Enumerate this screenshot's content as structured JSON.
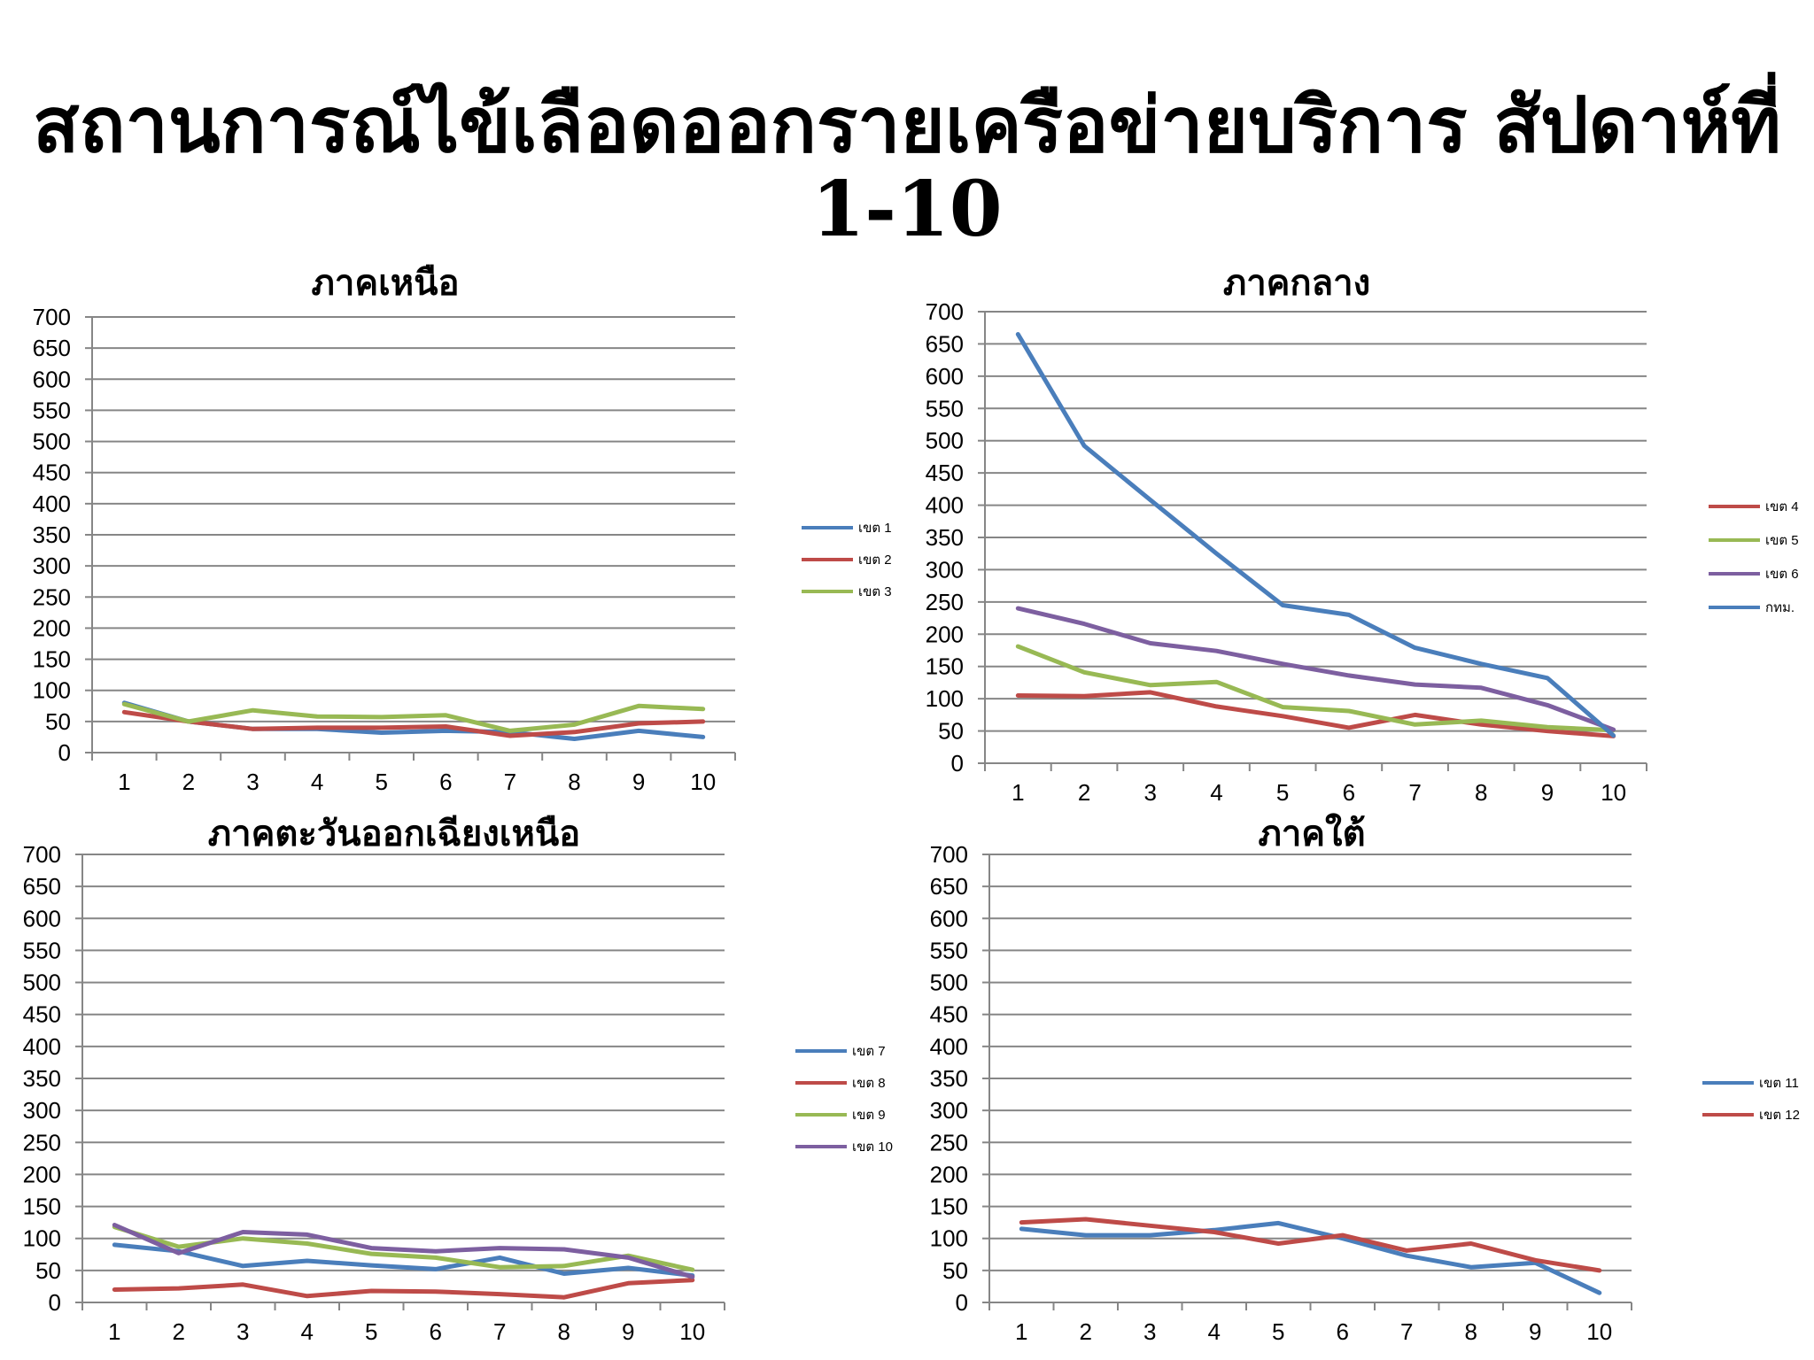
{
  "title": "สถานการณ์ไข้เลือดออกรายเครือข่ายบริการ สัปดาห์ที่ 1-10",
  "colors": {
    "blue": "#4a7ebb",
    "red": "#be4b48",
    "green": "#98b954",
    "purple": "#7d5fa0",
    "grid": "#868686"
  },
  "chart_data": [
    {
      "id": "north",
      "type": "line",
      "title": "ภาคเหนือ",
      "x": [
        1,
        2,
        3,
        4,
        5,
        6,
        7,
        8,
        9,
        10
      ],
      "ylim": [
        0,
        700
      ],
      "yticks": [
        0,
        50,
        100,
        150,
        200,
        250,
        300,
        350,
        400,
        450,
        500,
        550,
        600,
        650,
        700
      ],
      "grid": true,
      "legend": "right",
      "series": [
        {
          "name": "เขต 1",
          "color": "#4a7ebb",
          "values": [
            80,
            50,
            38,
            38,
            32,
            35,
            33,
            22,
            35,
            25
          ]
        },
        {
          "name": "เขต 2",
          "color": "#be4b48",
          "values": [
            65,
            50,
            38,
            40,
            40,
            42,
            27,
            33,
            47,
            50
          ]
        },
        {
          "name": "เขต 3",
          "color": "#98b954",
          "values": [
            78,
            50,
            68,
            58,
            57,
            60,
            35,
            45,
            75,
            70
          ]
        }
      ]
    },
    {
      "id": "central",
      "type": "line",
      "title": "ภาคกลาง",
      "x": [
        1,
        2,
        3,
        4,
        5,
        6,
        7,
        8,
        9,
        10
      ],
      "ylim": [
        0,
        700
      ],
      "yticks": [
        0,
        50,
        100,
        150,
        200,
        250,
        300,
        350,
        400,
        450,
        500,
        550,
        600,
        650,
        700
      ],
      "grid": true,
      "legend": "right",
      "series": [
        {
          "name": "เขต 4",
          "color": "#be4b48",
          "values": [
            105,
            104,
            110,
            88,
            73,
            55,
            75,
            60,
            50,
            42
          ]
        },
        {
          "name": "เขต 5",
          "color": "#98b954",
          "values": [
            181,
            141,
            121,
            126,
            87,
            81,
            60,
            66,
            56,
            51
          ]
        },
        {
          "name": "เขต 6",
          "color": "#7d5fa0",
          "values": [
            240,
            216,
            186,
            174,
            154,
            136,
            122,
            117,
            90,
            52
          ]
        },
        {
          "name": "กทม.",
          "color": "#4a7ebb",
          "values": [
            665,
            492,
            408,
            325,
            245,
            230,
            179,
            154,
            132,
            43
          ]
        }
      ]
    },
    {
      "id": "northeast",
      "type": "line",
      "title": "ภาคตะวันออกเฉียงเหนือ",
      "x": [
        1,
        2,
        3,
        4,
        5,
        6,
        7,
        8,
        9,
        10
      ],
      "ylim": [
        0,
        700
      ],
      "yticks": [
        0,
        50,
        100,
        150,
        200,
        250,
        300,
        350,
        400,
        450,
        500,
        550,
        600,
        650,
        700
      ],
      "grid": true,
      "legend": "right",
      "series": [
        {
          "name": "เขต 7",
          "color": "#4a7ebb",
          "values": [
            90,
            80,
            57,
            65,
            58,
            52,
            70,
            45,
            54,
            42
          ]
        },
        {
          "name": "เขต 8",
          "color": "#be4b48",
          "values": [
            20,
            22,
            28,
            10,
            18,
            17,
            13,
            8,
            30,
            35
          ]
        },
        {
          "name": "เขต 9",
          "color": "#98b954",
          "values": [
            118,
            87,
            100,
            92,
            76,
            70,
            55,
            57,
            73,
            51
          ]
        },
        {
          "name": "เขต 10",
          "color": "#7d5fa0",
          "values": [
            121,
            77,
            110,
            106,
            85,
            80,
            85,
            83,
            70,
            40
          ]
        }
      ]
    },
    {
      "id": "south",
      "type": "line",
      "title": "ภาคใต้",
      "x": [
        1,
        2,
        3,
        4,
        5,
        6,
        7,
        8,
        9,
        10
      ],
      "ylim": [
        0,
        700
      ],
      "yticks": [
        0,
        50,
        100,
        150,
        200,
        250,
        300,
        350,
        400,
        450,
        500,
        550,
        600,
        650,
        700
      ],
      "grid": true,
      "legend": "right",
      "series": [
        {
          "name": "เขต 11",
          "color": "#4a7ebb",
          "values": [
            115,
            105,
            105,
            113,
            124,
            100,
            73,
            55,
            62,
            15
          ]
        },
        {
          "name": "เขต 12",
          "color": "#be4b48",
          "values": [
            125,
            130,
            120,
            110,
            92,
            105,
            81,
            92,
            66,
            50
          ]
        }
      ]
    }
  ]
}
